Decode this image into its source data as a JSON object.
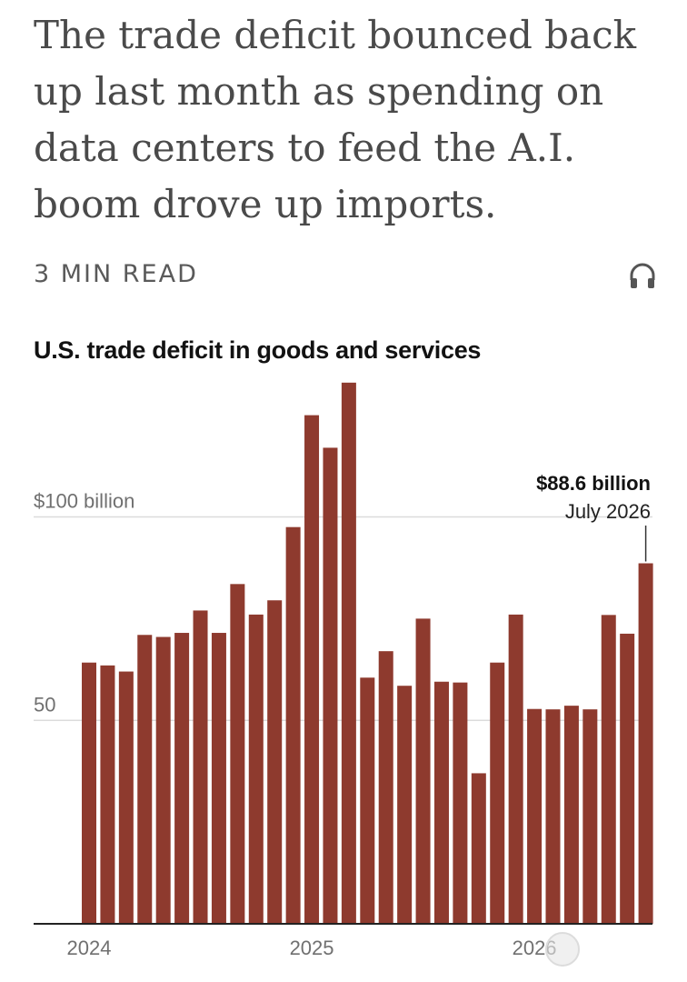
{
  "article": {
    "headline": "The trade deficit bounced back up last month as spending on data centers to feed the A.I. boom drove up imports.",
    "read_time": "3 MIN READ",
    "audio_icon": "headphones-icon"
  },
  "colors": {
    "bar": "#8e3a2e",
    "gridline": "#dcdcdc",
    "baseline": "#222222",
    "axis_text": "#707070"
  },
  "chart_data": {
    "type": "bar",
    "title": "U.S. trade deficit in goods and services",
    "xlabel": "",
    "ylabel": "",
    "unit": "billion USD",
    "ylim": [
      0,
      133
    ],
    "yticks": [
      {
        "value": 50,
        "label": "50"
      },
      {
        "value": 100,
        "label": "$100 billion"
      }
    ],
    "xticks": [
      {
        "index": 0,
        "label": "2024"
      },
      {
        "index": 12,
        "label": "2025"
      },
      {
        "index": 24,
        "label": "2026"
      }
    ],
    "grid": true,
    "categories": [
      "Jan 2024",
      "Feb 2024",
      "Mar 2024",
      "Apr 2024",
      "May 2024",
      "Jun 2024",
      "Jul 2024",
      "Aug 2024",
      "Sep 2024",
      "Oct 2024",
      "Nov 2024",
      "Dec 2024",
      "Jan 2025",
      "Feb 2025",
      "Mar 2025",
      "Apr 2025",
      "May 2025",
      "Jun 2025",
      "Jul 2025",
      "Aug 2025",
      "Sep 2025",
      "Oct 2025",
      "Nov 2025",
      "Dec 2025",
      "Jan 2026",
      "Feb 2026",
      "Mar 2026",
      "Apr 2026",
      "May 2026",
      "Jun 2026",
      "Jul 2026"
    ],
    "values": [
      64.2,
      63.5,
      62.0,
      71.0,
      70.5,
      71.5,
      77.0,
      71.5,
      83.5,
      76.0,
      79.5,
      97.5,
      125.0,
      117.0,
      133.0,
      60.5,
      67.0,
      58.5,
      75.0,
      59.5,
      59.3,
      37.0,
      64.2,
      76.0,
      52.8,
      52.7,
      53.6,
      52.7,
      75.9,
      71.3,
      88.6
    ],
    "annotation": {
      "index": 30,
      "value_label": "$88.6 billion",
      "date_label": "July 2026"
    }
  }
}
